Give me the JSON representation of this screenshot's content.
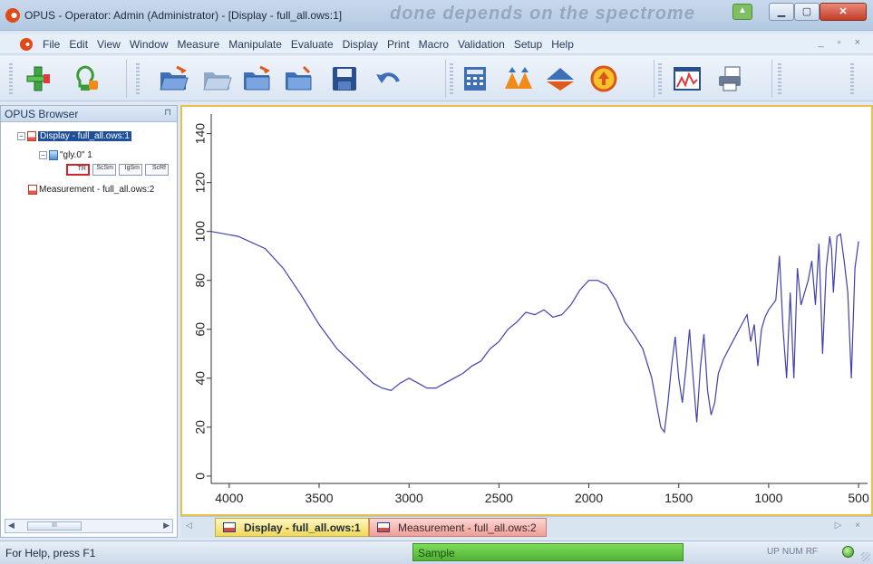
{
  "window": {
    "title": "OPUS - Operator: Admin  (Administrator) - [Display - full_all.ows:1]",
    "ghost_title": "done depends on the spectrome"
  },
  "menu": {
    "items": [
      "File",
      "Edit",
      "View",
      "Window",
      "Measure",
      "Manipulate",
      "Evaluate",
      "Display",
      "Print",
      "Macro",
      "Validation",
      "Setup",
      "Help"
    ],
    "mdi_controls": "_ ▫ ×"
  },
  "toolbar": {
    "icons": [
      "measure-icon",
      "bulb-icon",
      "open-folder-icon",
      "open-folder-multi-icon",
      "load-folder-icon",
      "load-folder-2-icon",
      "save-icon",
      "undo-icon",
      "calculator-icon",
      "peak-pick-icon",
      "baseline-icon",
      "target-icon",
      "spectrum-window-icon",
      "print-icon"
    ]
  },
  "browser": {
    "title": "OPUS Browser",
    "pin": "⊓",
    "tree": [
      {
        "label": "Display - full_all.ows:1",
        "level": 0,
        "toggle": "−",
        "selected": true
      },
      {
        "label": "\"gly.0\" 1",
        "level": 1,
        "toggle": "−",
        "selected": false
      },
      {
        "label": "Measurement - full_all.ows:2",
        "level": 0,
        "toggle": "",
        "selected": false
      }
    ],
    "spectrum_blocks": [
      "TR",
      "ScSm",
      "IgSm",
      "ScRf"
    ],
    "scroll_thumb": "III"
  },
  "chart_data": {
    "type": "line",
    "title": "",
    "xlabel": "",
    "ylabel": "",
    "xlim": [
      4100,
      450
    ],
    "ylim": [
      -3,
      148
    ],
    "x_ticks": [
      4000,
      3500,
      3000,
      2500,
      2000,
      1500,
      1000,
      500
    ],
    "y_ticks": [
      0,
      20,
      40,
      60,
      80,
      100,
      120,
      140
    ],
    "grid": false,
    "series": [
      {
        "name": "",
        "color": "#4040b0",
        "x": [
          4100,
          3950,
          3800,
          3700,
          3600,
          3500,
          3400,
          3300,
          3200,
          3150,
          3100,
          3050,
          3000,
          2950,
          2900,
          2850,
          2800,
          2750,
          2700,
          2650,
          2600,
          2550,
          2500,
          2450,
          2400,
          2350,
          2300,
          2250,
          2200,
          2150,
          2100,
          2050,
          2000,
          1950,
          1900,
          1850,
          1800,
          1750,
          1700,
          1650,
          1620,
          1600,
          1580,
          1560,
          1540,
          1520,
          1500,
          1480,
          1460,
          1440,
          1420,
          1400,
          1380,
          1360,
          1340,
          1320,
          1300,
          1280,
          1250,
          1200,
          1150,
          1120,
          1100,
          1080,
          1060,
          1040,
          1020,
          1000,
          980,
          960,
          940,
          920,
          900,
          880,
          860,
          840,
          820,
          800,
          780,
          760,
          740,
          720,
          700,
          680,
          660,
          650,
          640,
          620,
          600,
          580,
          560,
          540,
          520,
          500
        ],
        "y": [
          100,
          98,
          93,
          85,
          74,
          62,
          52,
          45,
          38,
          36,
          35,
          38,
          40,
          38,
          36,
          36,
          38,
          40,
          42,
          45,
          47,
          52,
          55,
          60,
          63,
          67,
          66,
          68,
          65,
          66,
          70,
          76,
          80,
          80,
          78,
          72,
          63,
          58,
          52,
          40,
          28,
          20,
          18,
          30,
          45,
          57,
          40,
          30,
          44,
          60,
          40,
          22,
          44,
          58,
          35,
          25,
          30,
          42,
          48,
          55,
          62,
          66,
          55,
          62,
          45,
          60,
          65,
          68,
          70,
          72,
          90,
          60,
          40,
          75,
          40,
          85,
          70,
          75,
          80,
          88,
          70,
          95,
          50,
          85,
          98,
          93,
          75,
          98,
          99,
          88,
          75,
          40,
          85,
          96
        ]
      }
    ]
  },
  "tabs": {
    "display_label": "Display - full_all.ows:1",
    "measurement_label": "Measurement - full_all.ows:2",
    "controls": "▷ ×"
  },
  "status": {
    "help": "For Help, press F1",
    "progress_label": "Sample",
    "progress": 1.0,
    "indicators": [
      "UP",
      "NUM",
      "RF"
    ]
  }
}
